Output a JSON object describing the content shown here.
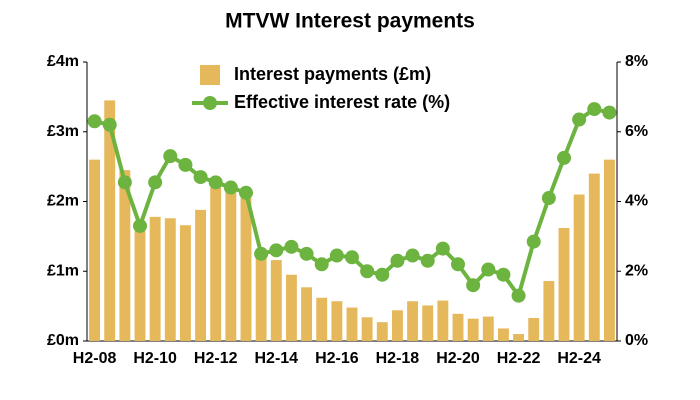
{
  "chart_data": {
    "type": "bar_line",
    "title": "MTVW Interest payments",
    "categories": [
      "H2-08",
      null,
      null,
      null,
      "H2-10",
      null,
      null,
      null,
      "H2-12",
      null,
      null,
      null,
      "H2-14",
      null,
      null,
      null,
      "H2-16",
      null,
      null,
      null,
      "H2-18",
      null,
      null,
      null,
      "H2-20",
      null,
      null,
      null,
      "H2-22",
      null,
      null,
      null,
      "H2-24",
      null,
      null
    ],
    "series": [
      {
        "name": "Interest payments (£m)",
        "type": "bar",
        "color": "#e6b85c",
        "values": [
          2.6,
          3.45,
          2.45,
          1.6,
          1.78,
          1.76,
          1.66,
          1.88,
          2.2,
          2.2,
          2.05,
          1.3,
          1.16,
          0.95,
          0.77,
          0.62,
          0.57,
          0.48,
          0.34,
          0.27,
          0.44,
          0.57,
          0.51,
          0.58,
          0.39,
          0.32,
          0.35,
          0.18,
          0.1,
          0.33,
          0.86,
          1.62,
          2.1,
          2.4,
          2.6
        ]
      },
      {
        "name": "Effective interest rate (%)",
        "type": "line",
        "axis": "y2",
        "color": "#6db33f",
        "values": [
          6.3,
          6.2,
          4.55,
          3.3,
          4.55,
          5.3,
          5.05,
          4.7,
          4.55,
          4.4,
          4.25,
          2.5,
          2.6,
          2.7,
          2.5,
          2.2,
          2.45,
          2.4,
          2.0,
          1.9,
          2.3,
          2.45,
          2.3,
          2.65,
          2.2,
          1.6,
          2.05,
          1.9,
          1.3,
          2.85,
          4.1,
          5.25,
          6.35,
          6.65,
          6.55
        ]
      }
    ],
    "ylim": [
      0,
      4
    ],
    "yticks": [
      {
        "value": 0,
        "label": "£0m"
      },
      {
        "value": 1,
        "label": "£1m"
      },
      {
        "value": 2,
        "label": "£2m"
      },
      {
        "value": 3,
        "label": "£3m"
      },
      {
        "value": 4,
        "label": "£4m"
      }
    ],
    "y2lim": [
      0,
      8
    ],
    "y2ticks": [
      {
        "value": 0,
        "label": "0%"
      },
      {
        "value": 2,
        "label": "2%"
      },
      {
        "value": 4,
        "label": "4%"
      },
      {
        "value": 6,
        "label": "6%"
      },
      {
        "value": 8,
        "label": "8%"
      }
    ],
    "grid": false,
    "legend": "upper center"
  }
}
